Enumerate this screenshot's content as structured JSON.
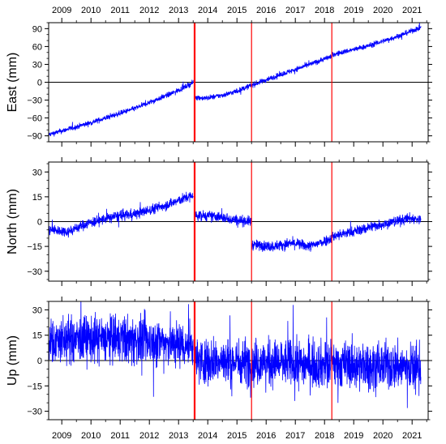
{
  "chart_data": [
    {
      "type": "line",
      "ylabel": "East (mm)",
      "ylim": [
        -100,
        100
      ],
      "yticks": [
        -90,
        -60,
        -30,
        0,
        30,
        60,
        90
      ],
      "xlim": [
        2008.55,
        2021.55
      ],
      "series": [
        {
          "segments": [
            {
              "x": [
                2008.55,
                2010.0,
                2011.5,
                2012.8,
                2013.5
              ],
              "y": [
                -88,
                -68,
                -44,
                -18,
                -1
              ]
            },
            {
              "x": [
                2013.55,
                2013.9,
                2014.5,
                2015.0,
                2015.5
              ],
              "y": [
                -25,
                -27,
                -22,
                -15,
                -5
              ]
            },
            {
              "x": [
                2015.5,
                2016.5,
                2017.5,
                2018.25
              ],
              "y": [
                -5,
                13,
                30,
                44
              ]
            },
            {
              "x": [
                2018.25,
                2019.5,
                2020.5,
                2021.3
              ],
              "y": [
                46,
                61,
                77,
                92
              ]
            }
          ],
          "noise": 2.2
        }
      ]
    },
    {
      "type": "line",
      "ylabel": "North (mm)",
      "ylim": [
        -36,
        36
      ],
      "yticks": [
        -30,
        -15,
        0,
        15,
        30
      ],
      "xlim": [
        2008.55,
        2021.55
      ],
      "series": [
        {
          "segments": [
            {
              "x": [
                2008.55,
                2009.2,
                2009.9,
                2010.8,
                2011.6,
                2012.2,
                2012.9,
                2013.5
              ],
              "y": [
                -5,
                -6,
                -1,
                3,
                5,
                8,
                12,
                16
              ]
            },
            {
              "x": [
                2013.55,
                2014.3,
                2015.0,
                2015.5
              ],
              "y": [
                4,
                3,
                1,
                0
              ]
            },
            {
              "x": [
                2015.5,
                2016.2,
                2016.9,
                2017.5,
                2018.25
              ],
              "y": [
                -14,
                -15,
                -13,
                -15,
                -10
              ]
            },
            {
              "x": [
                2018.25,
                2019.0,
                2019.6,
                2020.4,
                2020.9,
                2021.3
              ],
              "y": [
                -9,
                -6,
                -3,
                0,
                2,
                1
              ]
            }
          ],
          "noise": 1.6
        }
      ]
    },
    {
      "type": "line",
      "ylabel": "Up (mm)",
      "ylim": [
        -35,
        35
      ],
      "yticks": [
        -30,
        -15,
        0,
        15,
        30
      ],
      "xlim": [
        2008.55,
        2021.55
      ],
      "series": [
        {
          "segments": [
            {
              "x": [
                2008.55,
                2010.5,
                2012.5,
                2013.5
              ],
              "y": [
                12,
                13,
                11,
                9
              ]
            },
            {
              "x": [
                2013.55,
                2015.5,
                2017.5,
                2019.5,
                2021.3
              ],
              "y": [
                0,
                -1,
                -2,
                -3,
                -4
              ]
            }
          ],
          "noise": 7
        }
      ]
    }
  ],
  "x_axis": {
    "year_labels": [
      "2009",
      "2010",
      "2011",
      "2012",
      "2013",
      "2014",
      "2015",
      "2016",
      "2017",
      "2018",
      "2019",
      "2020",
      "2021"
    ],
    "year_positions": [
      2009.0,
      2010.0,
      2011.0,
      2012.0,
      2013.0,
      2014.0,
      2015.0,
      2016.0,
      2017.0,
      2018.0,
      2019.0,
      2020.0,
      2021.0
    ]
  },
  "events": [
    {
      "x": 2013.55,
      "thick": true
    },
    {
      "x": 2015.5,
      "thick": false
    },
    {
      "x": 2018.25,
      "thick": false
    }
  ],
  "colors": {
    "series": "#0000ff",
    "event": "#ff0000",
    "zero_line": "#000000"
  }
}
